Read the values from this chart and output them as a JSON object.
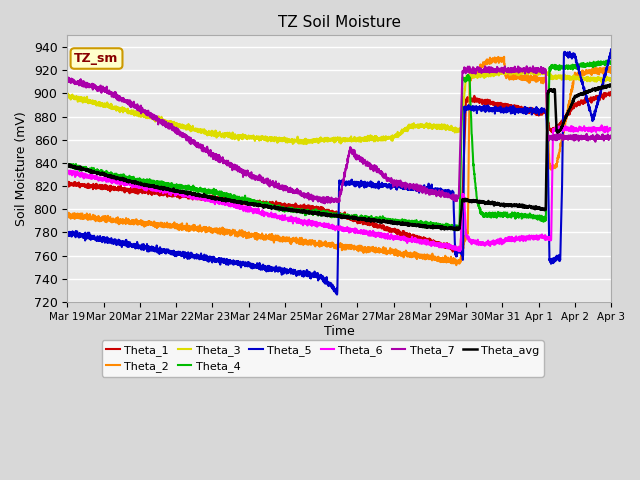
{
  "title": "TZ Soil Moisture",
  "xlabel": "Time",
  "ylabel": "Soil Moisture (mV)",
  "ylim": [
    720,
    950
  ],
  "yticks": [
    720,
    740,
    760,
    780,
    800,
    820,
    840,
    860,
    880,
    900,
    920,
    940
  ],
  "background_color": "#e0e0e0",
  "legend_label": "TZ_sm",
  "legend_box_color": "#ffffcc",
  "legend_box_edge": "#cc9900",
  "series": {
    "Theta_1": {
      "color": "#cc0000",
      "lw": 1.5
    },
    "Theta_2": {
      "color": "#ff8800",
      "lw": 1.5
    },
    "Theta_3": {
      "color": "#dddd00",
      "lw": 1.5
    },
    "Theta_4": {
      "color": "#00bb00",
      "lw": 1.5
    },
    "Theta_5": {
      "color": "#0000cc",
      "lw": 1.5
    },
    "Theta_6": {
      "color": "#ff00ff",
      "lw": 1.5
    },
    "Theta_7": {
      "color": "#aa00aa",
      "lw": 1.5
    },
    "Theta_avg": {
      "color": "#000000",
      "lw": 1.8
    }
  },
  "xtick_labels": [
    "Mar 19",
    "Mar 20",
    "Mar 21",
    "Mar 22",
    "Mar 23",
    "Mar 24",
    "Mar 25",
    "Mar 26",
    "Mar 27",
    "Mar 28",
    "Mar 29",
    "Mar 30",
    "Mar 31",
    "Apr 1",
    "Apr 2",
    "Apr 3"
  ]
}
